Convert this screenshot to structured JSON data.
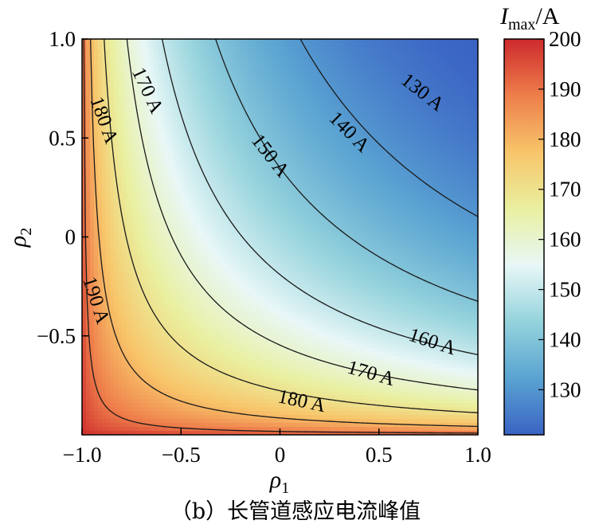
{
  "caption": "（b）长管道感应电流峰值",
  "chart_data": {
    "type": "heatmap",
    "title": "",
    "xlabel": "ρ1",
    "ylabel": "ρ2",
    "xlim": [
      -1.0,
      1.0
    ],
    "ylim": [
      -1.0,
      1.0
    ],
    "x_ticks": [
      -1.0,
      -0.5,
      0,
      0.5,
      1.0
    ],
    "x_tick_labels": [
      "−1.0",
      "−0.5",
      "0",
      "0.5",
      "1.0"
    ],
    "y_ticks": [
      -0.5,
      0,
      0.5,
      1.0
    ],
    "y_tick_labels": [
      "−0.5",
      "0",
      "0.5",
      "1.0"
    ],
    "colorbar": {
      "label": "Imax/A",
      "min": 121,
      "max": 200,
      "ticks": [
        130,
        140,
        150,
        160,
        170,
        180,
        190,
        200
      ],
      "colormap": [
        "#3a63c4",
        "#5aa3d2",
        "#95d3dc",
        "#e8f7f7",
        "#e9f0a0",
        "#f8c56a",
        "#ee7e4b",
        "#cd2a2c"
      ]
    },
    "contours": [
      {
        "level": 130,
        "label": "130 A"
      },
      {
        "level": 140,
        "label": "140 A"
      },
      {
        "level": 150,
        "label": "150 A"
      },
      {
        "level": 160,
        "label": "160 A"
      },
      {
        "level": 170,
        "label": "170 A"
      },
      {
        "level": 180,
        "label": "180 A"
      },
      {
        "level": 190,
        "label": "190 A"
      }
    ],
    "contour_labels": [
      {
        "text": "130 A",
        "x": 0.72,
        "y": 0.73,
        "angle": 38
      },
      {
        "text": "140 A",
        "x": 0.35,
        "y": 0.53,
        "angle": 45
      },
      {
        "text": "150 A",
        "x": -0.05,
        "y": 0.41,
        "angle": 52
      },
      {
        "text": "170 A",
        "x": -0.67,
        "y": 0.74,
        "angle": 65
      },
      {
        "text": "180 A",
        "x": -0.89,
        "y": 0.59,
        "angle": 70
      },
      {
        "text": "190 A",
        "x": -0.93,
        "y": -0.32,
        "angle": 72
      },
      {
        "text": "160 A",
        "x": 0.77,
        "y": -0.53,
        "angle": 18
      },
      {
        "text": "170 A",
        "x": 0.46,
        "y": -0.69,
        "angle": 16
      },
      {
        "text": "180 A",
        "x": 0.11,
        "y": -0.83,
        "angle": 12
      }
    ]
  }
}
